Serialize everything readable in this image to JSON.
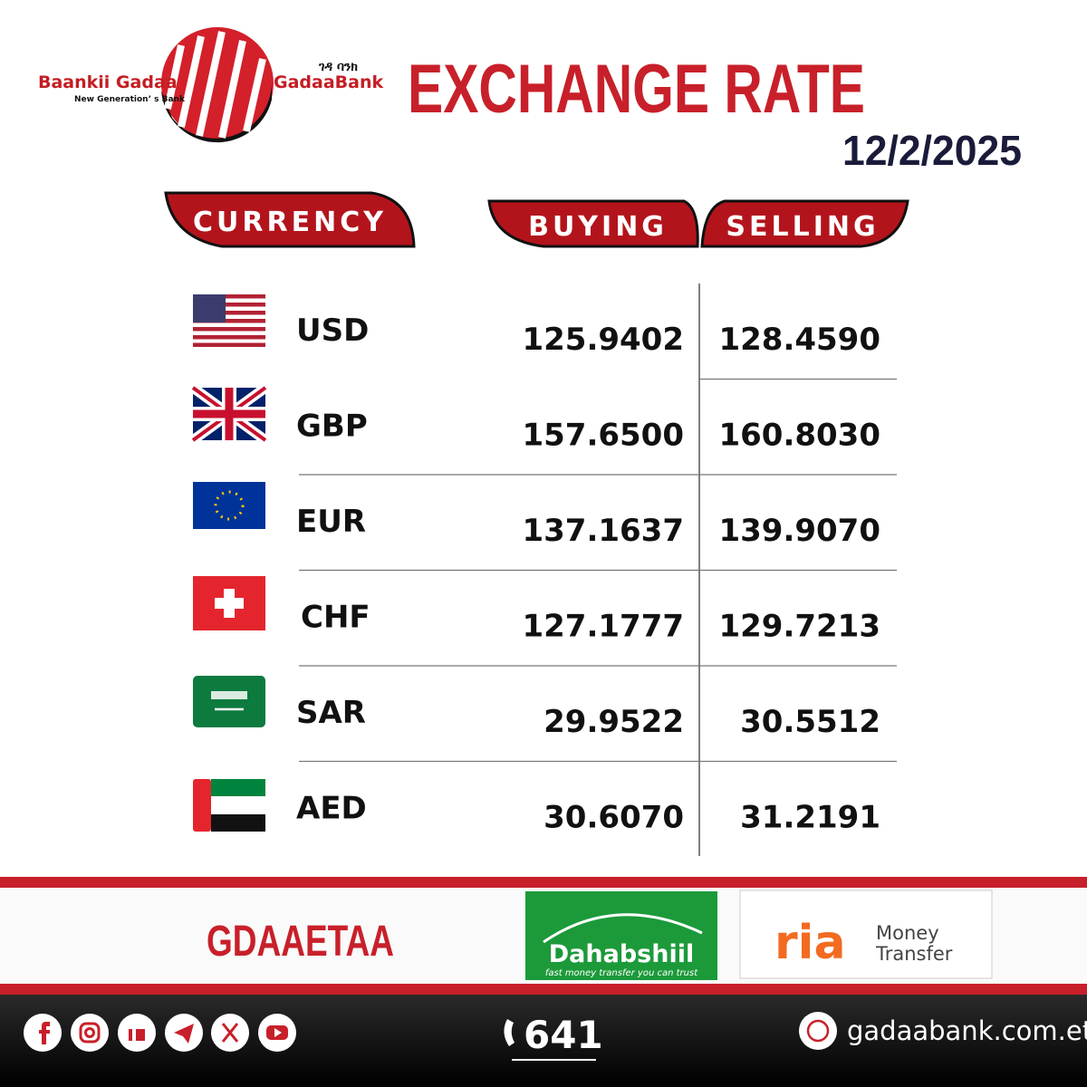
{
  "header": {
    "brand_left": "Baankii Gadaa",
    "tagline": "New Generation’ s Bank",
    "brand_amharic": "ገዳ ባንክ",
    "brand_right": "GadaaBank",
    "title": "EXCHANGE RATE",
    "date": "12/2/2025"
  },
  "table": {
    "columns": [
      "CURRENCY",
      "BUYING",
      "SELLING"
    ],
    "rows": [
      [
        "USD",
        "125.9402",
        "128.4590"
      ],
      [
        "GBP",
        "157.6500",
        "160.8030"
      ],
      [
        "EUR",
        "137.1637",
        "139.9070"
      ],
      [
        "CHF",
        "127.1777",
        "129.7213"
      ],
      [
        "SAR",
        "29.9522",
        "30.5512"
      ],
      [
        "AED",
        "30.6070",
        "31.2191"
      ]
    ]
  },
  "footer": {
    "partner_text": "GDAAETAA",
    "dahabshiil": "Dahabshiil",
    "dahabshiil_slogan": "fast money transfer you can trust",
    "ria": "ria",
    "ria_line1": "Money",
    "ria_line2": "Transfer",
    "phone": "641",
    "website": "gadaabank.com.et"
  }
}
